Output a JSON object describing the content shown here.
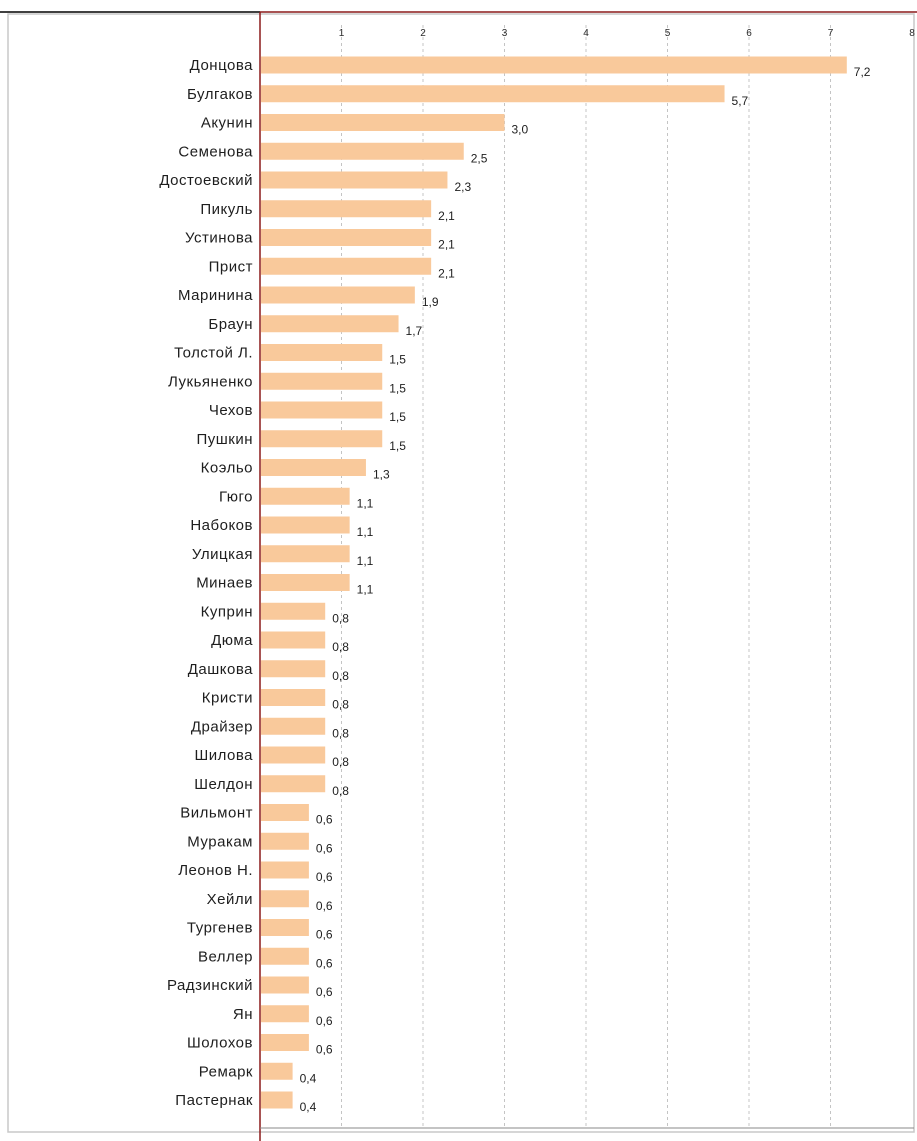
{
  "chart_data": {
    "type": "bar",
    "orientation": "horizontal",
    "title": "",
    "xlabel": "",
    "ylabel": "",
    "xlim": [
      0,
      8
    ],
    "x_ticks": [
      1,
      2,
      3,
      4,
      5,
      6,
      7,
      8
    ],
    "grid": "vertical dashed",
    "legend": "none",
    "bar_color": "#F9C99B",
    "decimal_separator": ",",
    "categories": [
      "Донцова",
      "Булгаков",
      "Акунин",
      "Семенова",
      "Достоевский",
      "Пикуль",
      "Устинова",
      "Прист",
      "Маринина",
      "Браун",
      "Толстой Л.",
      "Лукьяненко",
      "Чехов",
      "Пушкин",
      "Коэльо",
      "Гюго",
      "Набоков",
      "Улицкая",
      "Минаев",
      "Куприн",
      "Дюма",
      "Дашкова",
      "Кристи",
      "Драйзер",
      "Шилова",
      "Шелдон",
      "Вильмонт",
      "Муракам",
      "Леонов Н.",
      "Хейли",
      "Тургенев",
      "Веллер",
      "Радзинский",
      "Ян",
      "Шолохов",
      "Ремарк",
      "Пастернак"
    ],
    "values": [
      7.2,
      5.7,
      3.0,
      2.5,
      2.3,
      2.1,
      2.1,
      2.1,
      1.9,
      1.7,
      1.5,
      1.5,
      1.5,
      1.5,
      1.3,
      1.1,
      1.1,
      1.1,
      1.1,
      0.8,
      0.8,
      0.8,
      0.8,
      0.8,
      0.8,
      0.8,
      0.6,
      0.6,
      0.6,
      0.6,
      0.6,
      0.6,
      0.6,
      0.6,
      0.6,
      0.4,
      0.4
    ]
  }
}
